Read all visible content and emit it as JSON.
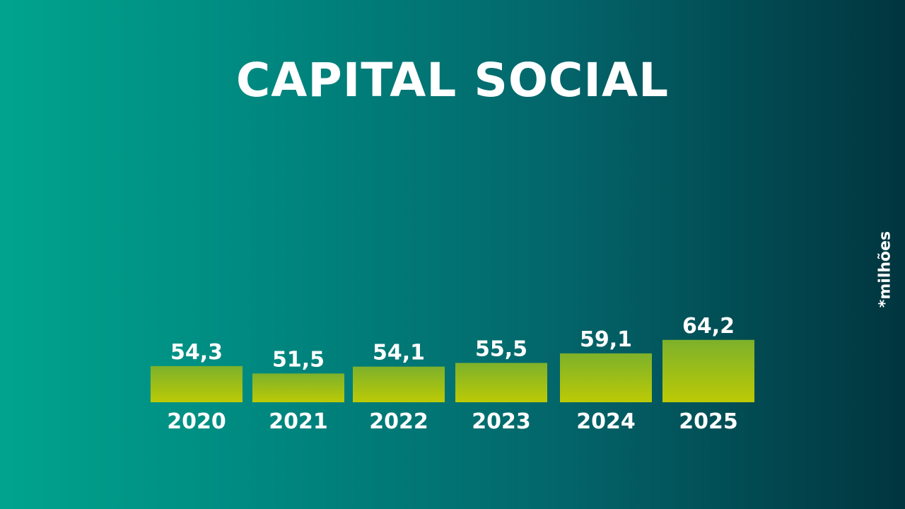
{
  "title": "CAPITAL SOCIAL",
  "unit_note": "*milhões",
  "colors": {
    "background_left": "#00a48e",
    "background_right": "#01353f",
    "bar_top": "#7db12b",
    "bar_bottom": "#bcca05",
    "text": "#ffffff"
  },
  "chart_data": {
    "type": "bar",
    "categories": [
      "2020",
      "2021",
      "2022",
      "2023",
      "2024",
      "2025"
    ],
    "values": [
      54.3,
      51.5,
      54.1,
      55.5,
      59.1,
      64.2
    ],
    "value_labels": [
      "54,3",
      "51,5",
      "54,1",
      "55,5",
      "59,1",
      "64,2"
    ],
    "title": "CAPITAL SOCIAL",
    "xlabel": "",
    "ylabel": "",
    "grid": false,
    "legend": "none"
  }
}
